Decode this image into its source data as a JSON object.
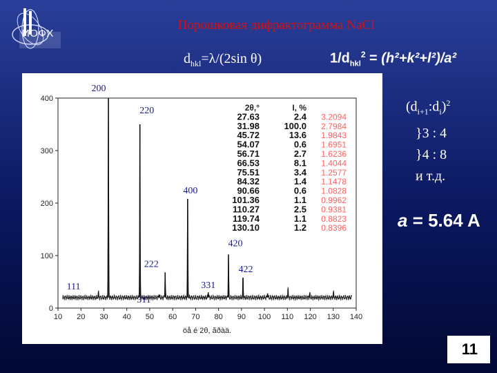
{
  "slide": {
    "logo_text": "ИОФХ",
    "title": "Порошковая дифрактограмма NaCl",
    "formula_bragg": {
      "lhs": "d",
      "lhs_sub": "hkl",
      "rhs": "=λ/(2sin θ)"
    },
    "formula_cubic": {
      "lhs": "1/d",
      "lhs_sub": "hkl",
      "lhs_sup": "2",
      "eq": " = ",
      "rhs": "(h²+k²+l²)/a²"
    },
    "ratio_header": {
      "open": "(d",
      "sub1": "i+1",
      "mid": ":d",
      "sub2": "i",
      "close": ")",
      "sup": "2"
    },
    "ratio_lines": [
      "}3 : 4",
      "}4 : 8",
      "и т.д."
    ],
    "lattice": {
      "var": "a",
      "rest": " = 5.64 A"
    },
    "page_number": "11",
    "colors": {
      "background_top": "#2a3f9a",
      "background_bottom": "#020833",
      "title": "#d81010",
      "peak_label": "#1a1a8c",
      "table_overlay": "#ff2a2a"
    }
  },
  "chart_data": {
    "type": "line",
    "xlabel": "öå é 2θ, ãðàä.",
    "xlim": [
      10,
      140
    ],
    "ylim": [
      0,
      400
    ],
    "x_ticks": [
      10,
      20,
      30,
      40,
      50,
      60,
      70,
      80,
      90,
      100,
      110,
      120,
      130,
      140
    ],
    "y_ticks": [
      0,
      100,
      200,
      300,
      400
    ],
    "background_level": 20,
    "peaks": [
      {
        "label": "111",
        "two_theta": 27.63,
        "height": 30
      },
      {
        "label": "200",
        "two_theta": 31.98,
        "height": 400
      },
      {
        "label": "220",
        "two_theta": 45.72,
        "height": 350
      },
      {
        "label": "311",
        "two_theta": 54.07,
        "height": 26
      },
      {
        "label": "222",
        "two_theta": 56.71,
        "height": 68
      },
      {
        "label": "400",
        "two_theta": 66.53,
        "height": 208
      },
      {
        "label": "331",
        "two_theta": 75.51,
        "height": 30
      },
      {
        "label": "420",
        "two_theta": 84.32,
        "height": 102
      },
      {
        "label": "422",
        "two_theta": 90.66,
        "height": 58
      },
      {
        "label": "",
        "two_theta": 101.36,
        "height": 28
      },
      {
        "label": "",
        "two_theta": 110.27,
        "height": 36
      },
      {
        "label": "",
        "two_theta": 119.74,
        "height": 28
      },
      {
        "label": "",
        "two_theta": 130.1,
        "height": 30
      }
    ],
    "table": {
      "headers": [
        "2θ,°",
        "I, %"
      ],
      "rows": [
        [
          "27.63",
          "2.4"
        ],
        [
          "31.98",
          "100.0"
        ],
        [
          "45.72",
          "13.6"
        ],
        [
          "54.07",
          "0.6"
        ],
        [
          "56.71",
          "2.7"
        ],
        [
          "66.53",
          "8.1"
        ],
        [
          "75.51",
          "3.4"
        ],
        [
          "84.32",
          "1.4"
        ],
        [
          "90.66",
          "0.6"
        ],
        [
          "101.36",
          "1.1"
        ],
        [
          "110.27",
          "2.5"
        ],
        [
          "119.74",
          "1.1"
        ],
        [
          "130.10",
          "1.2"
        ]
      ],
      "red_column": [
        "",
        "3.2094",
        "2.7984",
        "1.9843",
        "1.6951",
        "1.6236",
        "1.4044",
        "1.2577",
        "1.1478",
        "1.0828",
        "0.9962",
        "0.9381",
        "0.8823",
        "0.8396"
      ]
    }
  }
}
